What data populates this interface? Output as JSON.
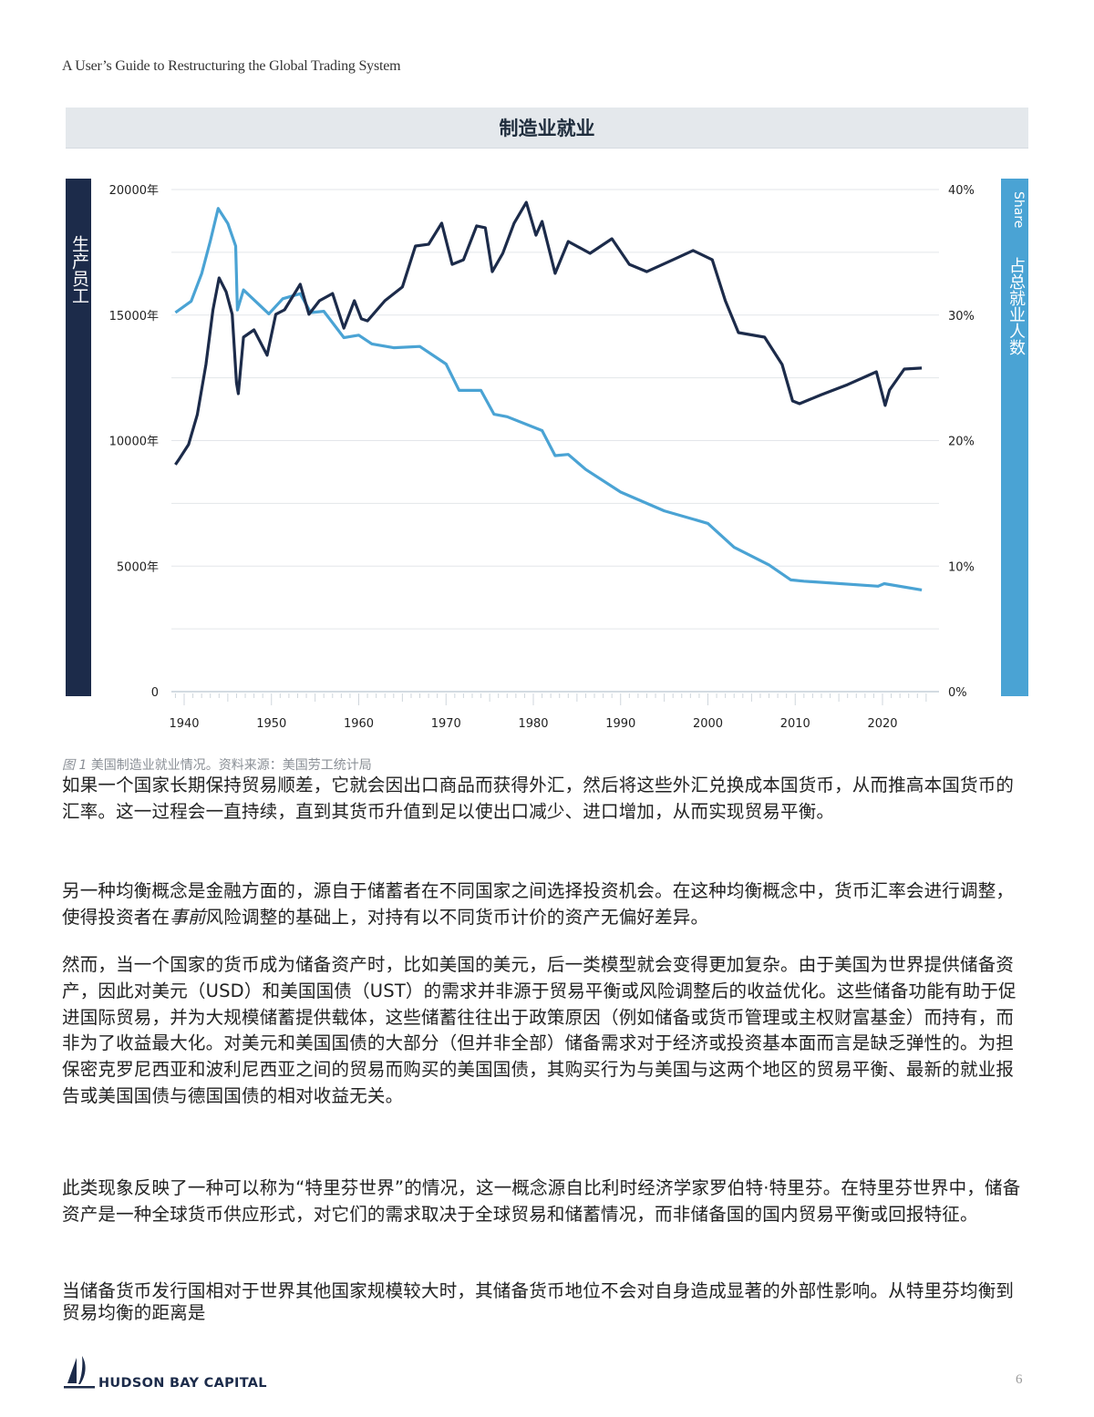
{
  "header": {
    "running_title": "A User’s Guide to Restructuring the Global Trading System"
  },
  "figure": {
    "title": "制造业就业",
    "left_axis_label": "生产员工",
    "right_axis_label_en": "Share",
    "right_axis_label_zh": "占总就业人数",
    "caption_prefix": "图 1",
    "caption_text": "美国制造业就业情况。资料来源：美国劳工统计局",
    "colors": {
      "employees": "#1c2b4a",
      "share": "#4aa3d4",
      "grid": "#e3e6ea",
      "left_band": "#1c2b4a",
      "right_band": "#4aa3d4"
    }
  },
  "chart_data": {
    "type": "line",
    "title": "制造业就业",
    "xlabel": "",
    "ylabel": "生产员工",
    "ylabel_right": "Share 占总就业人数",
    "x_ticks": [
      1940,
      1950,
      1960,
      1970,
      1980,
      1990,
      2000,
      2010,
      2020
    ],
    "y_ticks_left": [
      "0",
      "5000年",
      "10000年",
      "15000年",
      "20000年"
    ],
    "y_ticks_left_values": [
      0,
      5000,
      10000,
      15000,
      20000
    ],
    "y_ticks_right": [
      "0%",
      "10%",
      "20%",
      "30%",
      "40%"
    ],
    "y_ticks_right_values": [
      0,
      10,
      20,
      30,
      40
    ],
    "ylim": [
      0,
      20000
    ],
    "ylim_right": [
      0,
      40
    ],
    "xlim": [
      1938.5,
      2026
    ],
    "grid": true,
    "legend": "none (axis bands identify series)",
    "series": [
      {
        "name": "生产员工",
        "axis": "left",
        "color": "#1c2b4a",
        "x": [
          1939.0,
          1939.5,
          1940.5,
          1941.5,
          1942.5,
          1943.3,
          1944.0,
          1944.8,
          1945.5,
          1946.0,
          1946.2,
          1946.8,
          1948.0,
          1949.5,
          1950.5,
          1951.5,
          1953.3,
          1954.3,
          1955.5,
          1957.0,
          1958.3,
          1959.5,
          1960.3,
          1961.0,
          1963.0,
          1965.0,
          1966.5,
          1968.0,
          1969.5,
          1970.7,
          1972.0,
          1973.5,
          1974.5,
          1975.3,
          1976.5,
          1977.8,
          1979.2,
          1980.3,
          1981.0,
          1982.5,
          1984.0,
          1986.5,
          1989.0,
          1991.0,
          1993.0,
          1996.0,
          1998.3,
          2000.5,
          2002.0,
          2003.5,
          2006.5,
          2008.5,
          2009.7,
          2010.5,
          2013.0,
          2016.0,
          2019.3,
          2020.3,
          2020.8,
          2022.5,
          2024.5
        ],
        "values": [
          9040,
          9300,
          9840,
          11030,
          13030,
          15210,
          16480,
          15930,
          15030,
          12300,
          11870,
          14120,
          14410,
          13400,
          15030,
          15210,
          16230,
          15030,
          15570,
          15860,
          14480,
          15570,
          14850,
          14770,
          15570,
          16120,
          17750,
          17820,
          18660,
          17020,
          17200,
          18550,
          18480,
          16730,
          17460,
          18660,
          19490,
          18180,
          18730,
          16660,
          17930,
          17460,
          18040,
          17020,
          16730,
          17200,
          17570,
          17200,
          15570,
          14300,
          14120,
          13030,
          11580,
          11470,
          11830,
          12230,
          12740,
          11400,
          12010,
          12850,
          12890
        ]
      },
      {
        "name": "占总就业人数 (Share)",
        "axis": "right",
        "color": "#4aa3d4",
        "x": [
          1939.0,
          1940.8,
          1942.0,
          1943.0,
          1943.9,
          1945.0,
          1945.9,
          1946.1,
          1946.8,
          1949.7,
          1951.3,
          1953.3,
          1954.5,
          1956.0,
          1958.3,
          1960.0,
          1961.5,
          1964.0,
          1967.0,
          1970.0,
          1971.5,
          1974.0,
          1975.5,
          1977.0,
          1981.0,
          1982.5,
          1984.0,
          1986.0,
          1990.0,
          1995.0,
          2000.0,
          2003.0,
          2007.0,
          2009.5,
          2011.0,
          2019.5,
          2020.2,
          2024.5
        ],
        "values": [
          30.2,
          31.1,
          33.3,
          35.9,
          38.5,
          37.3,
          35.5,
          30.4,
          32.0,
          30.1,
          31.3,
          31.7,
          30.2,
          30.3,
          28.2,
          28.4,
          27.7,
          27.4,
          27.5,
          26.1,
          24.0,
          24.0,
          22.1,
          21.9,
          20.8,
          18.8,
          18.9,
          17.7,
          15.9,
          14.4,
          13.4,
          11.5,
          10.1,
          8.9,
          8.8,
          8.4,
          8.6,
          8.1
        ]
      }
    ]
  },
  "body": {
    "paragraphs": [
      "如果一个国家长期保持贸易顺差，它就会因出口商品而获得外汇，然后将这些外汇兑换成本国货币，从而推高本国货币的汇率。这一过程会一直持续，直到其货币升值到足以使出口减少、进口增加，从而实现贸易平衡。",
      "另一种均衡概念是金融方面的，源自于储蓄者在不同国家之间选择投资机会。在这种均衡概念中，货币汇率会进行调整，使得投资者在事前风险调整的基础上，对持有以不同货币计价的资产无偏好差异。",
      "然而，当一个国家的货币成为储备资产时，比如美国的美元，后一类模型就会变得更加复杂。由于美国为世界提供储备资产，因此对美元（USD）和美国国债（UST）的需求并非源于贸易平衡或风险调整后的收益优化。这些储备功能有助于促进国际贸易，并为大规模储蓄提供载体，这些储蓄往往出于政策原因（例如储备或货币管理或主权财富基金）而持有，而非为了收益最大化。对美元和美国国债的大部分（但并非全部）储备需求对于经济或投资基本面而言是缺乏弹性的。为担保密克罗尼西亚和波利尼西亚之间的贸易而购买的美国国债，其购买行为与美国与这两个地区的贸易平衡、最新的就业报告或美国国债与德国国债的相对收益无关。",
      "此类现象反映了一种可以称为“特里芬世界”的情况，这一概念源自比利时经济学家罗伯特·特里芬。在特里芬世界中，储备资产是一种全球货币供应形式，对它们的需求取决于全球贸易和储蓄情况，而非储备国的国内贸易平衡或回报特征。",
      "当储备货币发行国相对于世界其他国家规模较大时，其储备货币地位不会对自身造成显著的外部性影响。从特里芬均衡到贸易均衡的距离是"
    ],
    "p2_part1": "另一种均衡概念是金融方面的，源自于储蓄者在不同国家之间选择投资机会。在这种均衡概念中，货币汇率会进行调整，使得投资者在",
    "p2_em": "事前",
    "p2_part2": "风险调整的基础上，对持有以不同货币计价的资产无偏好差异。"
  },
  "footer": {
    "logo_text": "HUDSON BAY CAPITAL",
    "logo_icon": "sailboat-icon",
    "page_number": "6"
  }
}
